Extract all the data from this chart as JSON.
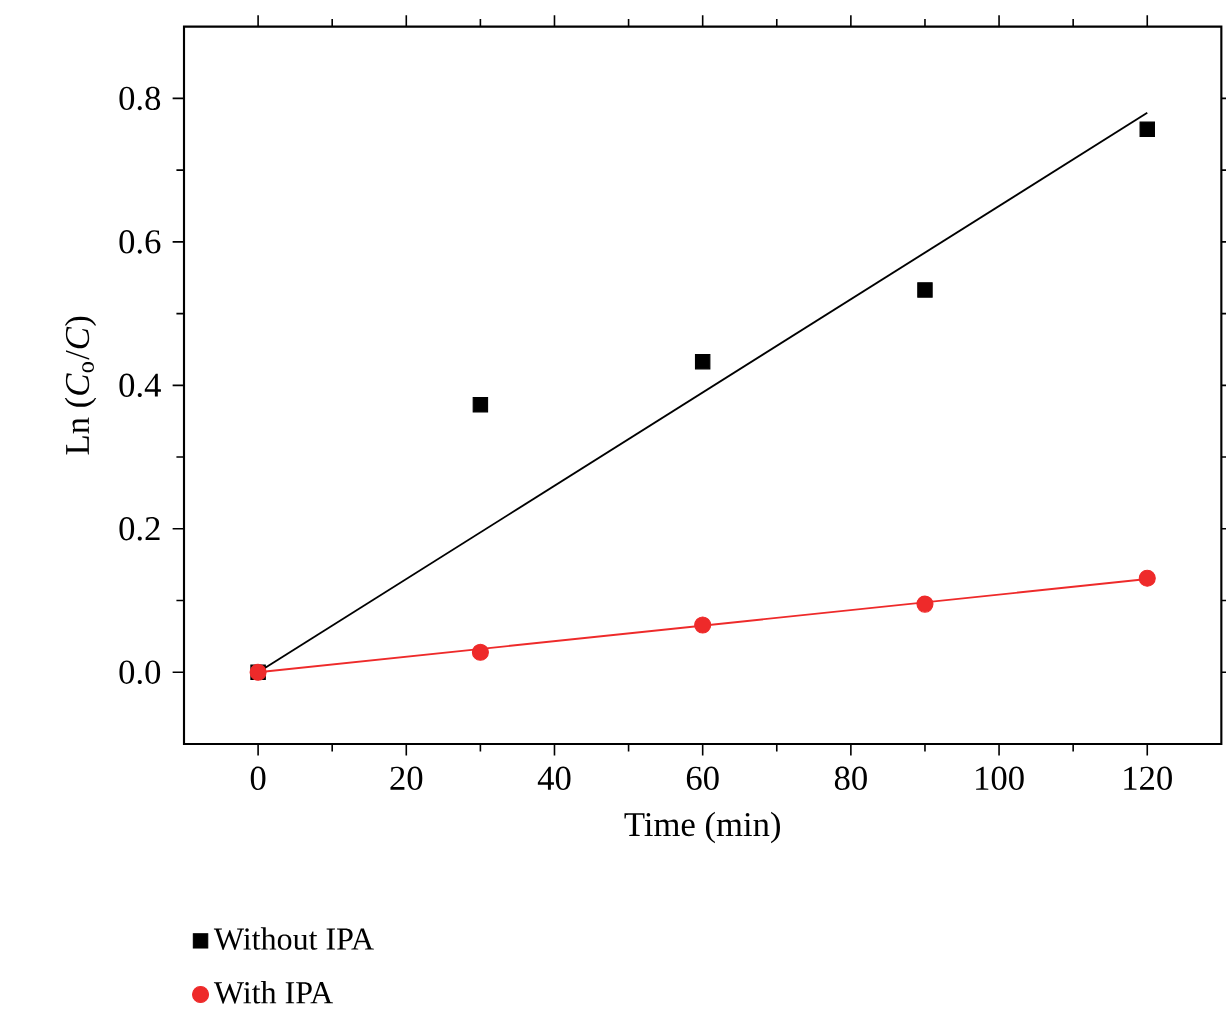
{
  "chart_data": {
    "type": "scatter",
    "xlabel": "Time (min)",
    "ylabel": "Ln (*C*$_{o}$/*C*)",
    "series": [
      {
        "name": "Without IPA",
        "color": "#000000",
        "marker": "square",
        "x": [
          0,
          30,
          60,
          90,
          120
        ],
        "values": [
          0,
          0.373,
          0.433,
          0.533,
          0.757
        ]
      },
      {
        "name": "With IPA",
        "color": "#ee2a2a",
        "marker": "circle",
        "x": [
          0,
          30,
          60,
          90,
          120
        ],
        "values": [
          0,
          0.028,
          0.066,
          0.095,
          0.131
        ]
      },
      {
        "type": "line",
        "color": "#000000",
        "marker": "none",
        "x": [
          0,
          120
        ],
        "values": [
          0,
          0.78
        ]
      },
      {
        "type": "line",
        "color": "#ee2a2a",
        "marker": "none",
        "x": [
          0,
          120
        ],
        "values": [
          0,
          0.13
        ]
      }
    ],
    "xlim": [
      -10,
      130
    ],
    "ylim": [
      -0.1,
      0.9
    ],
    "xticks": [
      0,
      20,
      40,
      60,
      80,
      100,
      120
    ],
    "yticks": [
      {
        "value": 0,
        "label": "0.0"
      },
      {
        "value": 0.2,
        "label": "0.2"
      },
      {
        "value": 0.4,
        "label": "0.4"
      },
      {
        "value": 0.6,
        "label": "0.6"
      },
      {
        "value": 0.8,
        "label": "0.8"
      }
    ],
    "grid": false,
    "legend": "bottom left"
  }
}
